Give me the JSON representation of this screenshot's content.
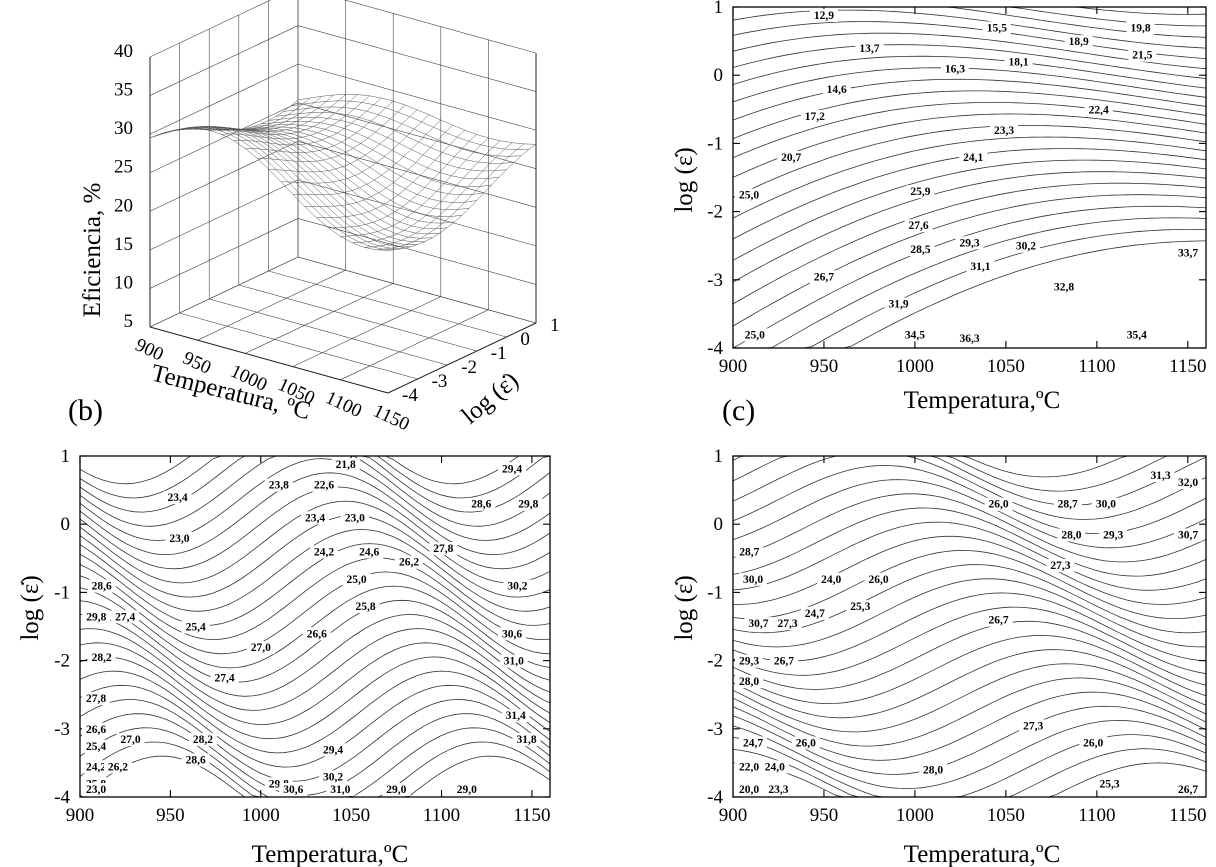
{
  "panels": {
    "a": {
      "letter": "",
      "xlabel": "Temperatura, ºC",
      "ylabel": "log (ε̇)",
      "zlabel": "Eficiencia, %"
    },
    "b": {
      "letter": "(b)",
      "xlabel": "Temperatura,ºC",
      "ylabel": "log (ε̇)"
    },
    "c": {
      "letter": "(c)",
      "xlabel": "Temperatura,ºC",
      "ylabel": "log (ε̇)"
    },
    "d": {
      "letter": "",
      "xlabel": "Temperatura,ºC",
      "ylabel": "log (ε̇)"
    }
  },
  "chart_data": [
    {
      "type": "surface",
      "panel": "a",
      "xlabel": "Temperatura, ºC",
      "ylabel": "log (ε̇)",
      "zlabel": "Eficiencia, %",
      "xticks": [
        "900",
        "950",
        "1000",
        "1050",
        "1100",
        "1150"
      ],
      "yticks": [
        "-4",
        "-3",
        "-2",
        "-1",
        "0",
        "1"
      ],
      "zticks": [
        "5",
        "10",
        "15",
        "20",
        "25",
        "30",
        "35",
        "40"
      ],
      "xlim": [
        900,
        1150
      ],
      "ylim": [
        -4,
        1
      ],
      "zlim": [
        5,
        40
      ]
    },
    {
      "type": "contour",
      "panel": "top-right",
      "xlabel": "Temperatura,ºC",
      "ylabel": "log (ε̇)",
      "xticks": [
        "900",
        "950",
        "1000",
        "1050",
        "1100",
        "1150"
      ],
      "yticks": [
        "-4",
        "-3",
        "-2",
        "-1",
        "0",
        "1"
      ],
      "xlim": [
        900,
        1160
      ],
      "ylim": [
        -4,
        1
      ],
      "labels": [
        {
          "x": 950,
          "y": 0.9,
          "v": "12,9"
        },
        {
          "x": 975,
          "y": 0.4,
          "v": "13,7"
        },
        {
          "x": 1045,
          "y": 0.7,
          "v": "15,5"
        },
        {
          "x": 1090,
          "y": 0.5,
          "v": "18,9"
        },
        {
          "x": 1124,
          "y": 0.7,
          "v": "19,8"
        },
        {
          "x": 1022,
          "y": 0.1,
          "v": "16,3"
        },
        {
          "x": 1057,
          "y": 0.2,
          "v": "18,1"
        },
        {
          "x": 1125,
          "y": 0.3,
          "v": "21,5"
        },
        {
          "x": 957,
          "y": -0.2,
          "v": "14,6"
        },
        {
          "x": 1101,
          "y": -0.5,
          "v": "22,4"
        },
        {
          "x": 945,
          "y": -0.6,
          "v": "17,2"
        },
        {
          "x": 1049,
          "y": -0.8,
          "v": "23,3"
        },
        {
          "x": 1032,
          "y": -1.2,
          "v": "24,1"
        },
        {
          "x": 932,
          "y": -1.2,
          "v": "20,7"
        },
        {
          "x": 1003,
          "y": -1.7,
          "v": "25,9"
        },
        {
          "x": 905,
          "y": -1.75,
          "v": "25,0"
        },
        {
          "x": 1002,
          "y": -2.2,
          "v": "27,6"
        },
        {
          "x": 1030,
          "y": -2.45,
          "v": "29,3"
        },
        {
          "x": 1061,
          "y": -2.5,
          "v": "30,2"
        },
        {
          "x": 1003,
          "y": -2.55,
          "v": "28,5"
        },
        {
          "x": 1152,
          "y": -2.6,
          "v": "33,7"
        },
        {
          "x": 1036,
          "y": -2.8,
          "v": "31,1"
        },
        {
          "x": 950,
          "y": -2.95,
          "v": "26,7"
        },
        {
          "x": 1082,
          "y": -3.1,
          "v": "32,8"
        },
        {
          "x": 991,
          "y": -3.35,
          "v": "31,9"
        },
        {
          "x": 1000,
          "y": -3.8,
          "v": "34,5"
        },
        {
          "x": 1030,
          "y": -3.85,
          "v": "36,3"
        },
        {
          "x": 1122,
          "y": -3.8,
          "v": "35,4"
        },
        {
          "x": 912,
          "y": -3.8,
          "v": "25,0"
        }
      ]
    },
    {
      "type": "contour",
      "panel": "b",
      "xlabel": "Temperatura,ºC",
      "ylabel": "log (ε̇)",
      "xticks": [
        "900",
        "950",
        "1000",
        "1050",
        "1100",
        "1150"
      ],
      "yticks": [
        "-4",
        "-3",
        "-2",
        "-1",
        "0",
        "1"
      ],
      "xlim": [
        900,
        1160
      ],
      "ylim": [
        -4,
        1
      ],
      "labels": [
        {
          "x": 1047,
          "y": 0.88,
          "v": "21,8"
        },
        {
          "x": 1139,
          "y": 0.82,
          "v": "29,4"
        },
        {
          "x": 954,
          "y": 0.4,
          "v": "23,4"
        },
        {
          "x": 1010,
          "y": 0.58,
          "v": "23,8"
        },
        {
          "x": 1035,
          "y": 0.58,
          "v": "22,6"
        },
        {
          "x": 1122,
          "y": 0.3,
          "v": "28,6"
        },
        {
          "x": 1148,
          "y": 0.3,
          "v": "29,8"
        },
        {
          "x": 1030,
          "y": 0.1,
          "v": "23,4"
        },
        {
          "x": 1052,
          "y": 0.1,
          "v": "23,0"
        },
        {
          "x": 955,
          "y": -0.2,
          "v": "23,0"
        },
        {
          "x": 1101,
          "y": -0.35,
          "v": "27,8"
        },
        {
          "x": 1035,
          "y": -0.4,
          "v": "24,2"
        },
        {
          "x": 1060,
          "y": -0.4,
          "v": "24,6"
        },
        {
          "x": 1082,
          "y": -0.55,
          "v": "26,2"
        },
        {
          "x": 1053,
          "y": -0.8,
          "v": "25,0"
        },
        {
          "x": 1142,
          "y": -0.9,
          "v": "30,2"
        },
        {
          "x": 912,
          "y": -0.9,
          "v": "28,6"
        },
        {
          "x": 1058,
          "y": -1.2,
          "v": "25,8"
        },
        {
          "x": 909,
          "y": -1.35,
          "v": "29,8"
        },
        {
          "x": 925,
          "y": -1.35,
          "v": "27,4"
        },
        {
          "x": 964,
          "y": -1.5,
          "v": "25,4"
        },
        {
          "x": 1139,
          "y": -1.6,
          "v": "30,6"
        },
        {
          "x": 1031,
          "y": -1.6,
          "v": "26,6"
        },
        {
          "x": 1000,
          "y": -1.8,
          "v": "27,0"
        },
        {
          "x": 1140,
          "y": -2.0,
          "v": "31,0"
        },
        {
          "x": 912,
          "y": -1.95,
          "v": "28,2"
        },
        {
          "x": 980,
          "y": -2.25,
          "v": "27,4"
        },
        {
          "x": 907,
          "y": -2.55,
          "v": "27,8"
        },
        {
          "x": 1141,
          "y": -2.8,
          "v": "31,4"
        },
        {
          "x": 906,
          "y": -3.0,
          "v": "26,6"
        },
        {
          "x": 928,
          "y": -3.15,
          "v": "27,0"
        },
        {
          "x": 968,
          "y": -3.15,
          "v": "28,2"
        },
        {
          "x": 1147,
          "y": -3.15,
          "v": "31,8"
        },
        {
          "x": 905,
          "y": -3.25,
          "v": "25,4"
        },
        {
          "x": 1040,
          "y": -3.3,
          "v": "29,4"
        },
        {
          "x": 964,
          "y": -3.45,
          "v": "28,6"
        },
        {
          "x": 904,
          "y": -3.55,
          "v": "24,2"
        },
        {
          "x": 921,
          "y": -3.55,
          "v": "26,2"
        },
        {
          "x": 1040,
          "y": -3.7,
          "v": "30,2"
        },
        {
          "x": 1010,
          "y": -3.8,
          "v": "29,8"
        },
        {
          "x": 908,
          "y": -3.8,
          "v": "25,8"
        },
        {
          "x": 1044,
          "y": -4.05,
          "v": "31,0"
        },
        {
          "x": 1018,
          "y": -4.1,
          "v": "30,6"
        },
        {
          "x": 1075,
          "y": -4.1,
          "v": "29,0"
        },
        {
          "x": 1114,
          "y": -4.2,
          "v": "29,0"
        },
        {
          "x": 903,
          "y": -4.1,
          "v": "23,0"
        }
      ]
    },
    {
      "type": "contour",
      "panel": "c",
      "xlabel": "Temperatura,ºC",
      "ylabel": "log (ε̇)",
      "xticks": [
        "900",
        "950",
        "1000",
        "1050",
        "1100",
        "1150"
      ],
      "yticks": [
        "-4",
        "-3",
        "-2",
        "-1",
        "0",
        "1"
      ],
      "xlim": [
        900,
        1160
      ],
      "ylim": [
        -4,
        1
      ],
      "labels": [
        {
          "x": 1135,
          "y": 0.72,
          "v": "31,3"
        },
        {
          "x": 1154,
          "y": 0.62,
          "v": "32,0"
        },
        {
          "x": 1046,
          "y": 0.3,
          "v": "26,0"
        },
        {
          "x": 1084,
          "y": 0.3,
          "v": "28,7"
        },
        {
          "x": 1105,
          "y": 0.3,
          "v": "30,0"
        },
        {
          "x": 1086,
          "y": -0.15,
          "v": "28,0"
        },
        {
          "x": 1109,
          "y": -0.15,
          "v": "29,3"
        },
        {
          "x": 1154,
          "y": -0.15,
          "v": "30,7"
        },
        {
          "x": 909,
          "y": -0.4,
          "v": "28,7"
        },
        {
          "x": 1080,
          "y": -0.6,
          "v": "27,3"
        },
        {
          "x": 911,
          "y": -0.8,
          "v": "30,0"
        },
        {
          "x": 954,
          "y": -0.8,
          "v": "24,0"
        },
        {
          "x": 980,
          "y": -0.8,
          "v": "26,0"
        },
        {
          "x": 970,
          "y": -1.2,
          "v": "25,3"
        },
        {
          "x": 945,
          "y": -1.3,
          "v": "24,7"
        },
        {
          "x": 1046,
          "y": -1.4,
          "v": "26,7"
        },
        {
          "x": 914,
          "y": -1.45,
          "v": "30,7"
        },
        {
          "x": 930,
          "y": -1.45,
          "v": "27,3"
        },
        {
          "x": 906,
          "y": -2.0,
          "v": "29,3"
        },
        {
          "x": 928,
          "y": -2.0,
          "v": "26,7"
        },
        {
          "x": 903,
          "y": -2.3,
          "v": "28,0"
        },
        {
          "x": 1065,
          "y": -2.95,
          "v": "27,3"
        },
        {
          "x": 911,
          "y": -3.2,
          "v": "24,7"
        },
        {
          "x": 940,
          "y": -3.2,
          "v": "26,0"
        },
        {
          "x": 1098,
          "y": -3.2,
          "v": "26,0"
        },
        {
          "x": 1010,
          "y": -3.6,
          "v": "28,0"
        },
        {
          "x": 904,
          "y": -3.55,
          "v": "22,0"
        },
        {
          "x": 923,
          "y": -3.55,
          "v": "24,0"
        },
        {
          "x": 1107,
          "y": -3.8,
          "v": "25,3"
        },
        {
          "x": 1153,
          "y": -3.9,
          "v": "26,7"
        },
        {
          "x": 905,
          "y": -3.95,
          "v": "20,0"
        },
        {
          "x": 925,
          "y": -3.95,
          "v": "23,3"
        }
      ]
    }
  ]
}
